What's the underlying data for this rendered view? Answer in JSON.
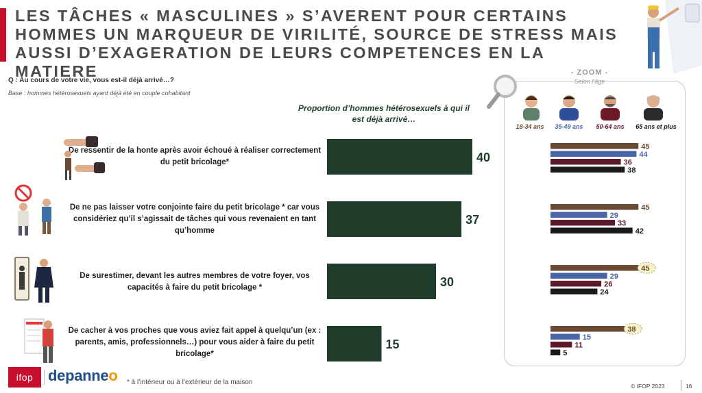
{
  "title": "LES TÂCHES « MASCULINES » S’AVERENT POUR CERTAINS HOMMES UN MARQUEUR DE VIRILITÉ, SOURCE DE STRESS MAIS AUSSI D’EXAGERATION DE LEURS COMPETENCES EN LA MATIERE",
  "question": "Q : Au cours de votre vie, vous est-il déjà arrivé…?",
  "base": "Base : hommes hétérosexuels ayant déjà été en couple cohabitant",
  "column_header": "Proportion d’hommes hétérosexuels à qui il est déjà arrivé…",
  "zoom": {
    "title": "- ZOOM -",
    "subtitle": "Selon l’âge"
  },
  "footnote": "* à l’intérieur ou à l’extérieur de la maison",
  "copyright": "© IFOP 2023",
  "page_number": "16",
  "logos": {
    "ifop": "ifop",
    "depanneo_main": "depanne",
    "depanneo_accent": "o"
  },
  "colors": {
    "main_bar": "#1f3d2a",
    "age_18_34": "#6b4a34",
    "age_35_49": "#4a64a8",
    "age_50_64": "#5c1a2b",
    "age_65": "#1a1a1a",
    "brand_red": "#c8102e"
  },
  "chart_data": [
    {
      "type": "bar",
      "orientation": "horizontal",
      "categories": [
        "De ressentir de la honte après avoir échoué à réaliser correctement du petit bricolage*",
        "De ne pas laisser votre conjointe faire du petit bricolage * car vous considériez qu’il s’agissait de tâches qui vous revenaient en tant qu’homme",
        "De surestimer, devant les autres membres de votre foyer, vos capacités à faire du petit bricolage *",
        "De cacher à vos proches que vous aviez fait appel à quelqu’un (ex : parents, amis, professionnels…) pour vous aider à faire du petit bricolage*"
      ],
      "values": [
        40,
        37,
        30,
        15
      ],
      "xlim": [
        0,
        100
      ]
    },
    {
      "type": "bar",
      "orientation": "horizontal",
      "series": [
        {
          "name": "18-34 ans",
          "values": [
            45,
            45,
            45,
            38
          ]
        },
        {
          "name": "35-49 ans",
          "values": [
            44,
            29,
            29,
            15
          ]
        },
        {
          "name": "50-64 ans",
          "values": [
            36,
            33,
            26,
            11
          ]
        },
        {
          "name": "65 ans et plus",
          "values": [
            38,
            42,
            24,
            5
          ]
        }
      ],
      "highlighted": [
        [
          2,
          0
        ],
        [
          3,
          0
        ]
      ],
      "xlim": [
        0,
        100
      ]
    }
  ]
}
